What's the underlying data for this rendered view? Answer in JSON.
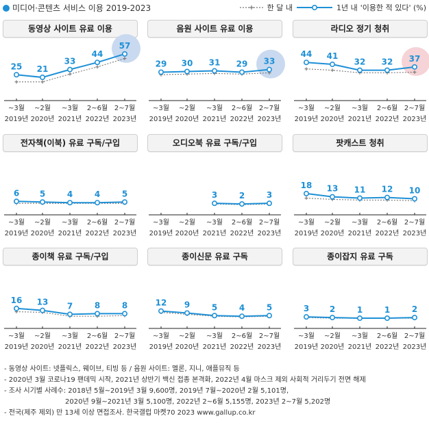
{
  "header": {
    "title": "미디어·콘텐츠 서비스 이용 2019-2023",
    "legend_monthly": "한 달 내",
    "legend_yearly": "1년 내",
    "legend_suffix": "'이용한 적 있다' (%)"
  },
  "colors": {
    "accent": "#1e90d6",
    "monthly": "#777777",
    "bubble_blue": "#c9d9ef",
    "bubble_red": "#f5d3d6"
  },
  "chart_data": [
    {
      "type": "line",
      "title": "동영상 사이트 유료 이용",
      "categories": [
        "~3월",
        "~2월",
        "~3월",
        "2~6월",
        "2~7월"
      ],
      "years": [
        "2019년",
        "2020년",
        "2021년",
        "2022년",
        "2023년"
      ],
      "series": [
        {
          "name": "1년 내",
          "values": [
            25,
            21,
            33,
            44,
            57
          ]
        },
        {
          "name": "한 달 내",
          "values": [
            14,
            14,
            26,
            37,
            50
          ]
        }
      ],
      "highlight": "blue"
    },
    {
      "type": "line",
      "title": "음원 사이트 유료 이용",
      "categories": [
        "~3월",
        "~2월",
        "~3월",
        "2~6월",
        "2~7월"
      ],
      "years": [
        "2019년",
        "2020년",
        "2021년",
        "2022년",
        "2023년"
      ],
      "series": [
        {
          "name": "1년 내",
          "values": [
            29,
            30,
            31,
            29,
            33
          ]
        },
        {
          "name": "한 달 내",
          "values": [
            25,
            26,
            27,
            26,
            28
          ]
        }
      ],
      "highlight": "blue"
    },
    {
      "type": "line",
      "title": "라디오 정기 청취",
      "categories": [
        "~3월",
        "~2월",
        "~3월",
        "2~6월",
        "2~7월"
      ],
      "years": [
        "2019년",
        "2020년",
        "2021년",
        "2022년",
        "2023년"
      ],
      "series": [
        {
          "name": "1년 내",
          "values": [
            44,
            41,
            32,
            32,
            37
          ]
        },
        {
          "name": "한 달 내",
          "values": [
            34,
            32,
            28,
            28,
            29
          ]
        }
      ],
      "highlight": "red"
    },
    {
      "type": "line",
      "title": "전자책(이북) 유료 구독/구입",
      "categories": [
        "~3월",
        "~2월",
        "~3월",
        "2~6월",
        "2~7월"
      ],
      "years": [
        "2019년",
        "2020년",
        "2021년",
        "2022년",
        "2023년"
      ],
      "series": [
        {
          "name": "1년 내",
          "values": [
            6,
            5,
            4,
            4,
            5
          ]
        },
        {
          "name": "한 달 내",
          "values": [
            3,
            3,
            3,
            3,
            3
          ]
        }
      ]
    },
    {
      "type": "line",
      "title": "오디오북 유료 구독/구입",
      "categories": [
        "~3월",
        "~2월",
        "~3월",
        "2~6월",
        "2~7월"
      ],
      "years": [
        "2019년",
        "2020년",
        "2021년",
        "2022년",
        "2023년"
      ],
      "series": [
        {
          "name": "1년 내",
          "values": [
            null,
            null,
            3,
            2,
            3
          ]
        },
        {
          "name": "한 달 내",
          "values": [
            null,
            null,
            2,
            1,
            2
          ]
        }
      ]
    },
    {
      "type": "line",
      "title": "팟캐스트 청취",
      "categories": [
        "~3월",
        "~2월",
        "~3월",
        "2~6월",
        "2~7월"
      ],
      "years": [
        "2019년",
        "2020년",
        "2021년",
        "2022년",
        "2023년"
      ],
      "series": [
        {
          "name": "1년 내",
          "values": [
            18,
            13,
            11,
            12,
            10
          ]
        },
        {
          "name": "한 달 내",
          "values": [
            11,
            9,
            8,
            8,
            7
          ]
        }
      ]
    },
    {
      "type": "line",
      "title": "종이책 유료 구독/구입",
      "categories": [
        "~3월",
        "~2월",
        "~3월",
        "2~6월",
        "2~7월"
      ],
      "years": [
        "2019년",
        "2020년",
        "2021년",
        "2022년",
        "2023년"
      ],
      "series": [
        {
          "name": "1년 내",
          "values": [
            16,
            13,
            7,
            8,
            8
          ]
        },
        {
          "name": "한 달 내",
          "values": [
            11,
            10,
            4,
            4,
            5
          ]
        }
      ]
    },
    {
      "type": "line",
      "title": "종이신문 유료 구독",
      "categories": [
        "~3월",
        "~2월",
        "~3월",
        "2~6월",
        "2~7월"
      ],
      "years": [
        "2019년",
        "2020년",
        "2021년",
        "2022년",
        "2023년"
      ],
      "series": [
        {
          "name": "1년 내",
          "values": [
            12,
            9,
            5,
            4,
            5
          ]
        },
        {
          "name": "한 달 내",
          "values": [
            10,
            7,
            4,
            3,
            4
          ]
        }
      ]
    },
    {
      "type": "line",
      "title": "종이잡지 유료 구독",
      "categories": [
        "~3월",
        "~2월",
        "~3월",
        "2~6월",
        "2~7월"
      ],
      "years": [
        "2019년",
        "2020년",
        "2021년",
        "2022년",
        "2023년"
      ],
      "series": [
        {
          "name": "1년 내",
          "values": [
            3,
            2,
            1,
            1,
            2
          ]
        },
        {
          "name": "한 달 내",
          "values": [
            2,
            1,
            1,
            1,
            1
          ]
        }
      ]
    }
  ],
  "notes": [
    "- 동영상 사이트: 넷플릭스, 웨이브, 티빙 등 / 음원 사이트: 멜론, 지니, 애플뮤직 등",
    "- 2020년 3월 코로나19 팬데믹 시작, 2021년 상반기 백신 접종 본격화, 2022년 4월 마스크 제외 사회적 거리두기 전면 해제",
    "- 조사 시기별 사례수: 2018년 5월~2019년 3월 9,600명, 2019년 7월~2020년 2월 5,101명,",
    "2020년 9월~2021년 3월 5,100명, 2022년 2~6월 5,155명, 2023년 2~7월 5,202명",
    "- 전국(제주 제외) 만 13세 이상 면접조사. 한국갤럽 마켓70 2023 www.gallup.co.kr"
  ]
}
